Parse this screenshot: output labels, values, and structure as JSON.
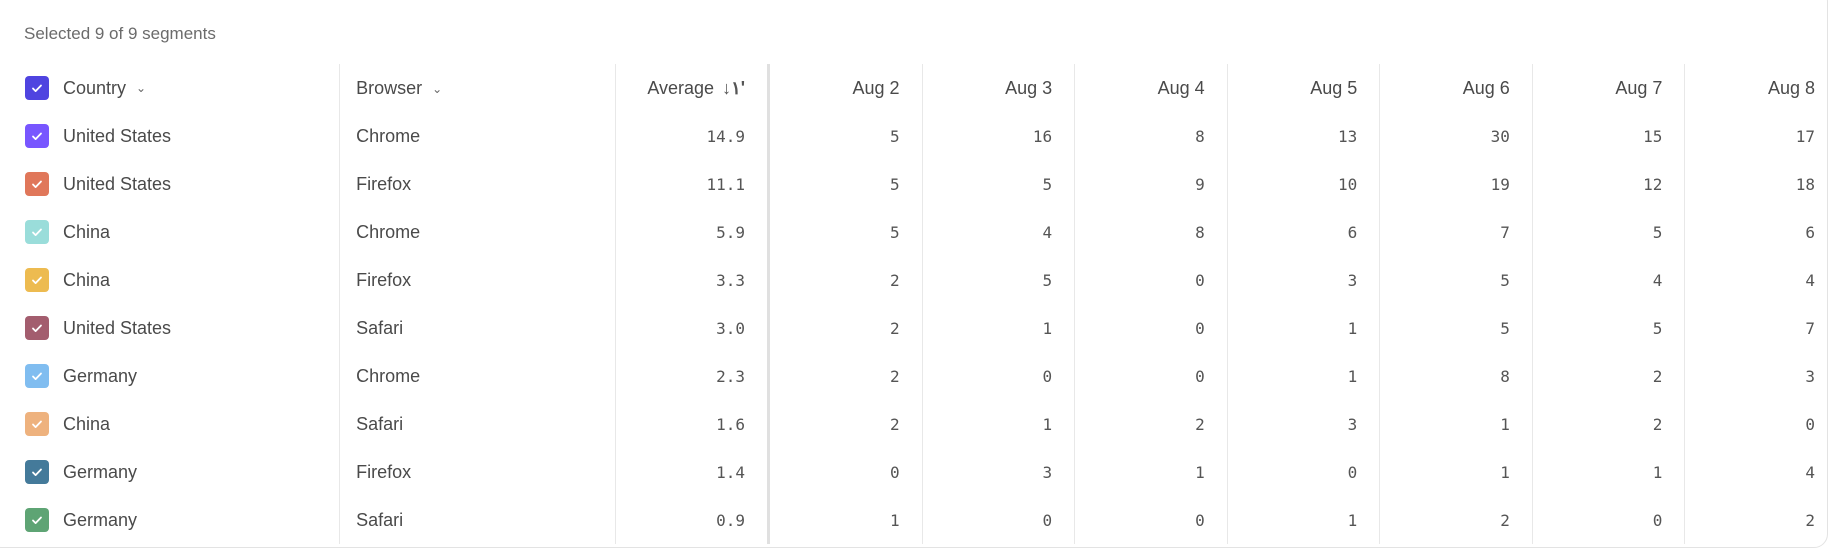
{
  "caption": "Selected 9 of 9 segments",
  "header": {
    "country": "Country",
    "browser": "Browser",
    "average": "Average",
    "header_checkbox_color": "#4F44E0",
    "sort_icon": "sort-descending-icon",
    "dates": [
      "Aug 2",
      "Aug 3",
      "Aug 4",
      "Aug 5",
      "Aug 6",
      "Aug 7",
      "Aug 8"
    ]
  },
  "rows": [
    {
      "country": "United States",
      "browser": "Chrome",
      "average": "14.9",
      "color": "#7856FF",
      "values": [
        "5",
        "16",
        "8",
        "13",
        "30",
        "15",
        "17"
      ]
    },
    {
      "country": "United States",
      "browser": "Firefox",
      "average": "11.1",
      "color": "#E0775A",
      "values": [
        "5",
        "5",
        "9",
        "10",
        "19",
        "12",
        "18"
      ]
    },
    {
      "country": "China",
      "browser": "Chrome",
      "average": "5.9",
      "color": "#9ADDDA",
      "values": [
        "5",
        "4",
        "8",
        "6",
        "7",
        "5",
        "6"
      ]
    },
    {
      "country": "China",
      "browser": "Firefox",
      "average": "3.3",
      "color": "#EDBB50",
      "values": [
        "2",
        "5",
        "0",
        "3",
        "5",
        "4",
        "4"
      ]
    },
    {
      "country": "United States",
      "browser": "Safari",
      "average": "3.0",
      "color": "#A35D6E",
      "values": [
        "2",
        "1",
        "0",
        "1",
        "5",
        "5",
        "7"
      ]
    },
    {
      "country": "Germany",
      "browser": "Chrome",
      "average": "2.3",
      "color": "#80BDF0",
      "values": [
        "2",
        "0",
        "0",
        "1",
        "8",
        "2",
        "3"
      ]
    },
    {
      "country": "China",
      "browser": "Safari",
      "average": "1.6",
      "color": "#EEB27E",
      "values": [
        "2",
        "1",
        "2",
        "3",
        "1",
        "2",
        "0"
      ]
    },
    {
      "country": "Germany",
      "browser": "Firefox",
      "average": "1.4",
      "color": "#447A9A",
      "values": [
        "0",
        "3",
        "1",
        "0",
        "1",
        "1",
        "4"
      ]
    },
    {
      "country": "Germany",
      "browser": "Safari",
      "average": "0.9",
      "color": "#5EA474",
      "values": [
        "1",
        "0",
        "0",
        "1",
        "2",
        "0",
        "2"
      ]
    }
  ]
}
